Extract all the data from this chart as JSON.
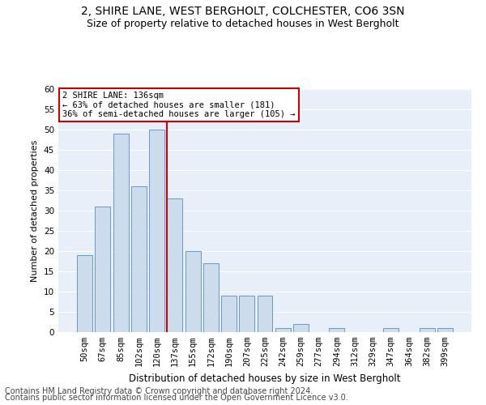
{
  "title1": "2, SHIRE LANE, WEST BERGHOLT, COLCHESTER, CO6 3SN",
  "title2": "Size of property relative to detached houses in West Bergholt",
  "xlabel": "Distribution of detached houses by size in West Bergholt",
  "ylabel": "Number of detached properties",
  "categories": [
    "50sqm",
    "67sqm",
    "85sqm",
    "102sqm",
    "120sqm",
    "137sqm",
    "155sqm",
    "172sqm",
    "190sqm",
    "207sqm",
    "225sqm",
    "242sqm",
    "259sqm",
    "277sqm",
    "294sqm",
    "312sqm",
    "329sqm",
    "347sqm",
    "364sqm",
    "382sqm",
    "399sqm"
  ],
  "values": [
    19,
    31,
    49,
    36,
    50,
    33,
    20,
    17,
    9,
    9,
    9,
    1,
    2,
    0,
    1,
    0,
    0,
    1,
    0,
    1,
    1
  ],
  "bar_color": "#cddcec",
  "bar_edge_color": "#6699cc",
  "vline_x_index": 5,
  "vline_color": "#cc0000",
  "annotation_text": "2 SHIRE LANE: 136sqm\n← 63% of detached houses are smaller (181)\n36% of semi-detached houses are larger (105) →",
  "annotation_box_color": "#ffffff",
  "annotation_box_edge": "#cc0000",
  "ylim": [
    0,
    60
  ],
  "yticks": [
    0,
    5,
    10,
    15,
    20,
    25,
    30,
    35,
    40,
    45,
    50,
    55,
    60
  ],
  "footer1": "Contains HM Land Registry data © Crown copyright and database right 2024.",
  "footer2": "Contains public sector information licensed under the Open Government Licence v3.0.",
  "bg_color": "#ffffff",
  "plot_bg_color": "#e8eff8",
  "grid_color": "#ffffff",
  "title1_fontsize": 10,
  "title2_fontsize": 9,
  "xlabel_fontsize": 8.5,
  "ylabel_fontsize": 8,
  "tick_fontsize": 7.5,
  "footer_fontsize": 7,
  "annot_fontsize": 7.5
}
